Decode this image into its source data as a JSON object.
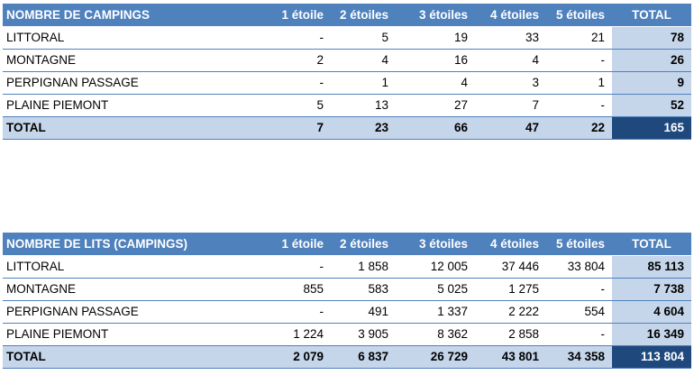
{
  "colors": {
    "header_bg": "#4f81bd",
    "header_text": "#ffffff",
    "total_fill": "#c5d5ea",
    "grand_total_bg": "#1f497d",
    "row_border": "#4f81bd"
  },
  "campings": {
    "headers": [
      "NOMBRE DE CAMPINGS",
      "1 étoile",
      "2 étoiles",
      "3 étoiles",
      "4 étoiles",
      "5 étoiles",
      "TOTAL"
    ],
    "rows": [
      {
        "label": "LITTORAL",
        "values": [
          "-",
          "5",
          "19",
          "33",
          "21"
        ],
        "total": "78"
      },
      {
        "label": "MONTAGNE",
        "values": [
          "2",
          "4",
          "16",
          "4",
          "-"
        ],
        "total": "26"
      },
      {
        "label": "PERPIGNAN PASSAGE",
        "values": [
          "-",
          "1",
          "4",
          "3",
          "1"
        ],
        "total": "9"
      },
      {
        "label": "PLAINE PIEMONT",
        "values": [
          "5",
          "13",
          "27",
          "7",
          "-"
        ],
        "total": "52"
      }
    ],
    "total_row": {
      "label": "TOTAL",
      "values": [
        "7",
        "23",
        "66",
        "47",
        "22"
      ],
      "total": "165"
    }
  },
  "lits": {
    "headers": [
      "NOMBRE DE LITS (CAMPINGS)",
      "1 étoile",
      "2 étoiles",
      "3 étoiles",
      "4 étoiles",
      "5 étoiles",
      "TOTAL"
    ],
    "rows": [
      {
        "label": "LITTORAL",
        "values": [
          "-",
          "1 858",
          "12 005",
          "37 446",
          "33 804"
        ],
        "total": "85 113"
      },
      {
        "label": "MONTAGNE",
        "values": [
          "855",
          "583",
          "5 025",
          "1 275",
          "-"
        ],
        "total": "7 738"
      },
      {
        "label": "PERPIGNAN PASSAGE",
        "values": [
          "-",
          "491",
          "1 337",
          "2 222",
          "554"
        ],
        "total": "4 604"
      },
      {
        "label": "PLAINE PIEMONT",
        "values": [
          "1 224",
          "3 905",
          "8 362",
          "2 858",
          "-"
        ],
        "total": "16 349"
      }
    ],
    "total_row": {
      "label": "TOTAL",
      "values": [
        "2 079",
        "6 837",
        "26 729",
        "43 801",
        "34 358"
      ],
      "total": "113 804"
    }
  }
}
